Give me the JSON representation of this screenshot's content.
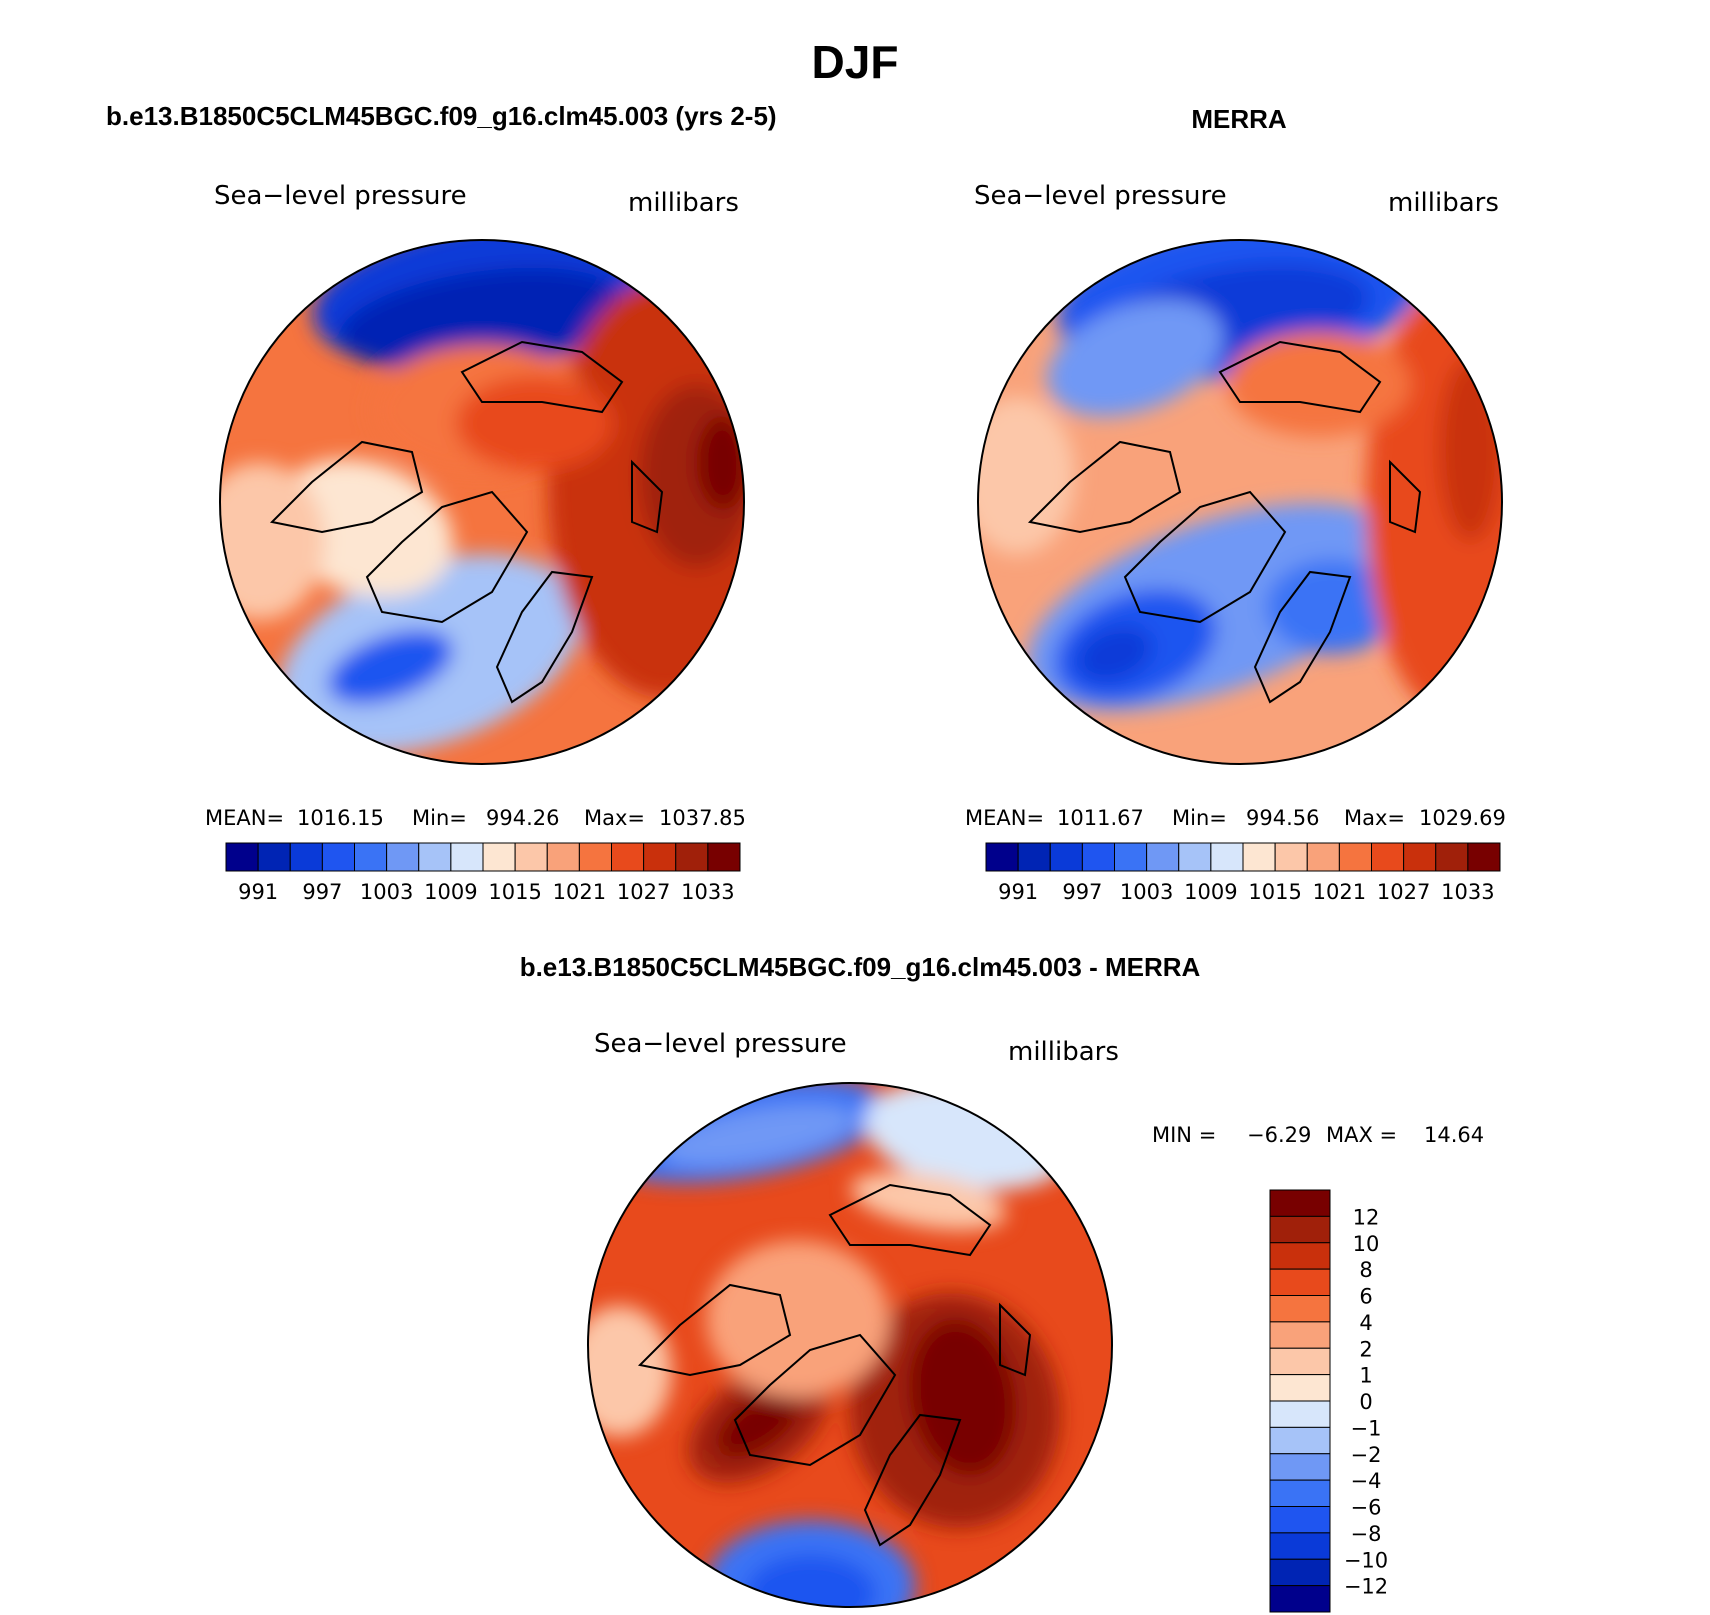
{
  "chart_data": {
    "type": "polar-contour-map",
    "title": "DJF",
    "panels": [
      {
        "id": "model",
        "heading": "b.e13.B1850C5CLM45BGC.f09_g16.clm45.003 (yrs 2-5)",
        "variable": "Sea−level pressure",
        "units": "millibars",
        "stats": {
          "mean_label": "MEAN=",
          "mean": "1016.15",
          "min_label": "Min=",
          "min": "994.26",
          "max_label": "Max=",
          "max": "1037.85"
        },
        "colorbar": {
          "orientation": "horizontal",
          "levels": [
            991,
            994,
            997,
            1000,
            1003,
            1006,
            1009,
            1012,
            1015,
            1018,
            1021,
            1024,
            1027,
            1030,
            1033
          ],
          "tick_labels": [
            "991",
            "997",
            "1003",
            "1009",
            "1015",
            "1021",
            "1027",
            "1033"
          ]
        }
      },
      {
        "id": "obs",
        "heading": "MERRA",
        "variable": "Sea−level pressure",
        "units": "millibars",
        "stats": {
          "mean_label": "MEAN=",
          "mean": "1011.67",
          "min_label": "Min=",
          "min": "994.56",
          "max_label": "Max=",
          "max": "1029.69"
        },
        "colorbar": {
          "orientation": "horizontal",
          "levels": [
            991,
            994,
            997,
            1000,
            1003,
            1006,
            1009,
            1012,
            1015,
            1018,
            1021,
            1024,
            1027,
            1030,
            1033
          ],
          "tick_labels": [
            "991",
            "997",
            "1003",
            "1009",
            "1015",
            "1021",
            "1027",
            "1033"
          ]
        }
      },
      {
        "id": "diff",
        "heading": "b.e13.B1850C5CLM45BGC.f09_g16.clm45.003 - MERRA",
        "variable": "Sea−level pressure",
        "units": "millibars",
        "stats": {
          "min_label": "MIN =",
          "min": "−6.29",
          "max_label": "MAX =",
          "max": "14.64"
        },
        "colorbar": {
          "orientation": "vertical",
          "levels": [
            12,
            10,
            8,
            6,
            4,
            2,
            1,
            0,
            -1,
            -2,
            -4,
            -6,
            -8,
            -10,
            -12
          ],
          "tick_labels": [
            "12",
            "10",
            "8",
            "6",
            "4",
            "2",
            "1",
            "0",
            "−1",
            "−2",
            "−4",
            "−6",
            "−8",
            "−10",
            "−12"
          ]
        }
      }
    ],
    "palette": [
      "#00008c",
      "#0024b4",
      "#0a3ad8",
      "#1f55f0",
      "#3a73f5",
      "#6f98f5",
      "#a6c3f8",
      "#d7e6fb",
      "#fde6d2",
      "#fcc7a9",
      "#f9a27a",
      "#f5743f",
      "#e84a1c",
      "#c9300c",
      "#a0200a",
      "#780000"
    ],
    "colors": {
      "coastline": "#000000",
      "background": "#ffffff"
    }
  }
}
